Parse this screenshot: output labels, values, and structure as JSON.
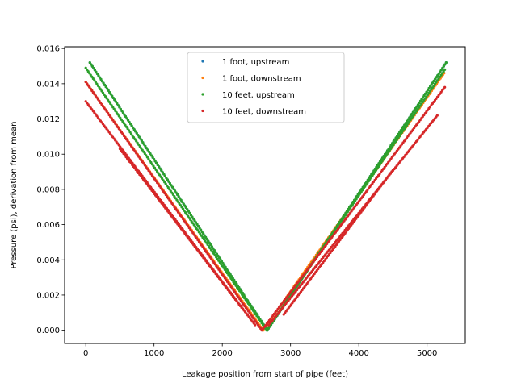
{
  "chart_data": {
    "type": "scatter",
    "title": "",
    "xlabel": "Leakage position from start of pipe (feet)",
    "ylabel": "Pressure (psi), derivation from mean",
    "xlim": [
      -310,
      5560
    ],
    "ylim": [
      -0.00075,
      0.0161
    ],
    "xticks": [
      0,
      1000,
      2000,
      3000,
      4000,
      5000
    ],
    "xtick_labels": [
      "0",
      "1000",
      "2000",
      "3000",
      "4000",
      "5000"
    ],
    "yticks": [
      0.0,
      0.002,
      0.004,
      0.006,
      0.008,
      0.01,
      0.012,
      0.014,
      0.016
    ],
    "ytick_labels": [
      "0.000",
      "0.002",
      "0.004",
      "0.006",
      "0.008",
      "0.010",
      "0.012",
      "0.014",
      "0.016"
    ],
    "grid": false,
    "legend_position": "upper-center",
    "series": [
      {
        "name": "1 foot, upstream",
        "color": "#1f77b4",
        "segments": [
          {
            "x": [
              60,
              2660
            ],
            "y": [
              0.0152,
              0.0
            ]
          },
          {
            "x": [
              2660,
              5280
            ],
            "y": [
              0.0,
              0.0152
            ]
          }
        ]
      },
      {
        "name": "1 foot, downstream",
        "color": "#ff7f0e",
        "segments": [
          {
            "x": [
              0,
              2600
            ],
            "y": [
              0.0141,
              0.0
            ]
          },
          {
            "x": [
              2600,
              5250
            ],
            "y": [
              0.0,
              0.0146
            ]
          }
        ]
      },
      {
        "name": "10 feet, upstream",
        "color": "#2ca02c",
        "segments": [
          {
            "x": [
              60,
              2660
            ],
            "y": [
              0.0152,
              0.0
            ]
          },
          {
            "x": [
              2660,
              5280
            ],
            "y": [
              0.0,
              0.0152
            ]
          },
          {
            "x": [
              0,
              2650
            ],
            "y": [
              0.0149,
              0.0
            ]
          },
          {
            "x": [
              2650,
              5260
            ],
            "y": [
              0.0,
              0.0148
            ]
          }
        ]
      },
      {
        "name": "10 feet, downstream",
        "color": "#d62728",
        "segments": [
          {
            "x": [
              0,
              2580
            ],
            "y": [
              0.0141,
              0.0
            ]
          },
          {
            "x": [
              2580,
              5260
            ],
            "y": [
              0.0,
              0.0138
            ]
          },
          {
            "x": [
              0,
              2480
            ],
            "y": [
              0.013,
              0.0003
            ]
          },
          {
            "x": [
              2680,
              5150
            ],
            "y": [
              0.0003,
              0.0122
            ]
          },
          {
            "x": [
              500,
              2300
            ],
            "y": [
              0.0103,
              0.0012
            ]
          },
          {
            "x": [
              2900,
              4500
            ],
            "y": [
              0.0009,
              0.0091
            ]
          }
        ]
      }
    ]
  }
}
